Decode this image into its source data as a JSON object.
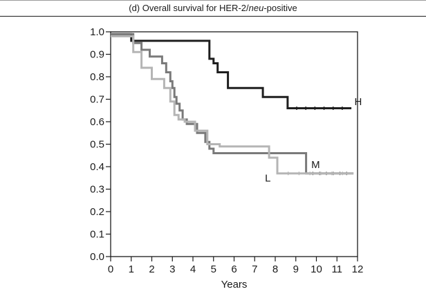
{
  "chart_data": {
    "type": "line",
    "title_prefix": "(d) Overall survival for HER-2/",
    "title_italic": "neu",
    "title_suffix": "-positive",
    "xlabel": "Years",
    "ylabel": "",
    "xlim": [
      0,
      12
    ],
    "ylim": [
      0,
      1
    ],
    "xticks": [
      "0",
      "1",
      "2",
      "3",
      "4",
      "5",
      "6",
      "7",
      "8",
      "9",
      "10",
      "11",
      "12"
    ],
    "yticks": [
      "0.0",
      "0.1",
      "0.2",
      "0.3",
      "0.4",
      "0.5",
      "0.6",
      "0.7",
      "0.8",
      "0.9",
      "1.0"
    ],
    "grid": false,
    "legend": "none",
    "series": [
      {
        "name": "H",
        "color": "#1e1e1e",
        "label_at": [
          11.85,
          0.69
        ],
        "x": [
          0,
          1,
          4.7,
          4.8,
          5.0,
          5.2,
          5.7,
          7.4,
          8.6,
          11.7
        ],
        "y": [
          0.99,
          0.96,
          0.96,
          0.88,
          0.86,
          0.82,
          0.75,
          0.71,
          0.66,
          0.66
        ]
      },
      {
        "name": "M",
        "color": "#7a7a7a",
        "label_at": [
          9.75,
          0.41
        ],
        "x": [
          0,
          0.9,
          1.1,
          1.5,
          1.9,
          2.5,
          2.7,
          2.9,
          3.0,
          3.1,
          3.2,
          3.35,
          3.5,
          3.7,
          4.2,
          4.6,
          4.8,
          5.0,
          9.5,
          11.8
        ],
        "y": [
          0.99,
          0.99,
          0.95,
          0.92,
          0.89,
          0.86,
          0.82,
          0.78,
          0.75,
          0.71,
          0.68,
          0.65,
          0.61,
          0.59,
          0.55,
          0.51,
          0.48,
          0.46,
          0.37,
          0.37
        ]
      },
      {
        "name": "L",
        "color": "#b5b5b5",
        "label_at": [
          7.5,
          0.35
        ],
        "x": [
          0,
          0.8,
          1.1,
          1.5,
          2.0,
          2.6,
          2.9,
          3.1,
          3.3,
          3.6,
          4.1,
          4.7,
          5.3,
          6.1,
          7.7,
          8.1,
          11.8
        ],
        "y": [
          0.98,
          0.98,
          0.91,
          0.84,
          0.79,
          0.75,
          0.69,
          0.63,
          0.61,
          0.6,
          0.56,
          0.5,
          0.49,
          0.49,
          0.44,
          0.37,
          0.37
        ]
      }
    ]
  }
}
